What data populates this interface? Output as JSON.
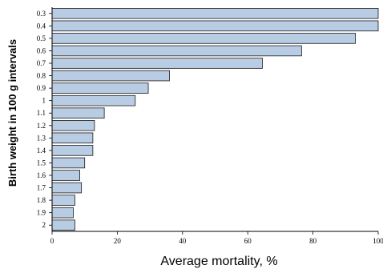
{
  "chart_data": {
    "type": "bar",
    "orientation": "horizontal",
    "categories": [
      "0.3",
      "0.4",
      "0.5",
      "0.6",
      "0.7",
      "0.8",
      "0.9",
      "1",
      "1.1",
      "1.2",
      "1.3",
      "1.4",
      "1.5",
      "1.6",
      "1.7",
      "1.8",
      "1.9",
      "2"
    ],
    "values": [
      100,
      100,
      93,
      76.5,
      64.5,
      36,
      29.5,
      25.5,
      16,
      13,
      12.5,
      12.5,
      10,
      8.5,
      9,
      7,
      6.5,
      7
    ],
    "xlabel": "Average mortality, %",
    "ylabel": "Birth weight in 100 g intervals",
    "xlim": [
      0,
      100
    ],
    "xticks": [
      "0",
      "20",
      "40",
      "60",
      "80",
      "100"
    ],
    "grid": false,
    "colors": {
      "bar_fill": "#b8cce4",
      "bar_stroke": "#1a1a1a",
      "axis": "#000000"
    }
  }
}
